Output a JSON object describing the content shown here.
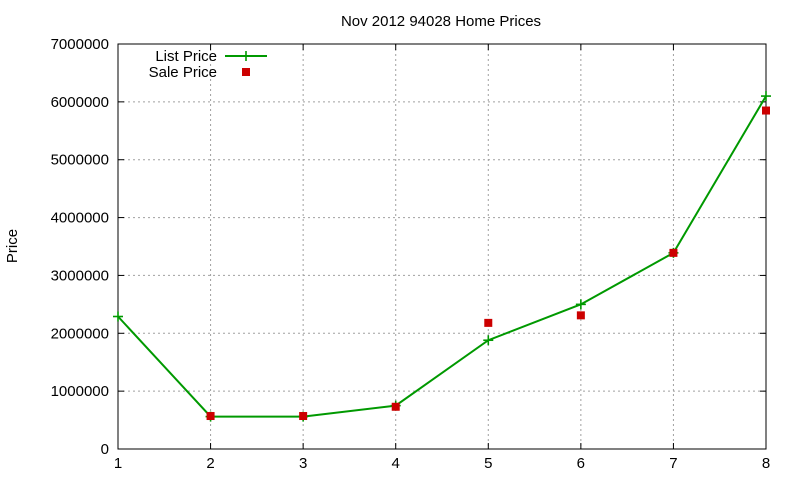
{
  "chart_data": {
    "type": "line",
    "title": "Nov 2012 94028 Home Prices",
    "xlabel": "",
    "ylabel": "Price",
    "xlim": [
      1,
      8
    ],
    "ylim": [
      0,
      7000000
    ],
    "x_ticks": [
      "1",
      "2",
      "3",
      "4",
      "5",
      "6",
      "7",
      "8"
    ],
    "y_ticks": [
      "0",
      "1000000",
      "2000000",
      "3000000",
      "4000000",
      "5000000",
      "6000000",
      "7000000"
    ],
    "grid": true,
    "legend_position": "top-left",
    "series": [
      {
        "name": "List Price",
        "style": "linespoints",
        "marker": "plus",
        "color": "#009900",
        "x": [
          1,
          2,
          3,
          4,
          5,
          6,
          7,
          8
        ],
        "y": [
          2290000,
          560000,
          560000,
          750000,
          1880000,
          2500000,
          3390000,
          6100000
        ]
      },
      {
        "name": "Sale Price",
        "style": "points",
        "marker": "square",
        "color": "#cc0000",
        "x": [
          2,
          3,
          4,
          5,
          6,
          7,
          8
        ],
        "y": [
          570000,
          570000,
          730000,
          2180000,
          2310000,
          3390000,
          5850000
        ]
      }
    ]
  }
}
